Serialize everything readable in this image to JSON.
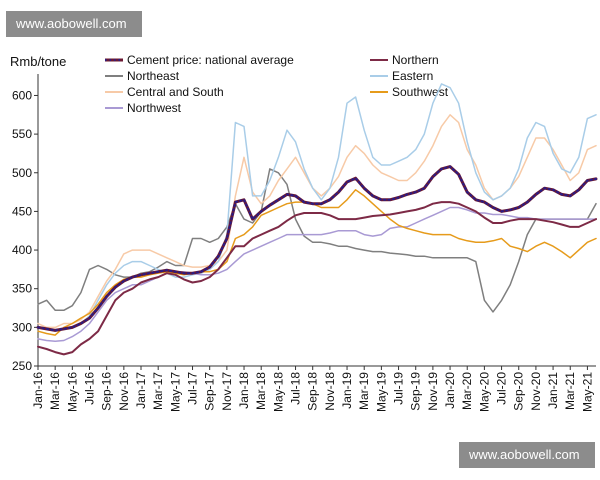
{
  "watermark": {
    "top": "www.aobowell.com",
    "bottom": "www.aobowell.com"
  },
  "chart_data": {
    "type": "line",
    "title": "",
    "xlabel": "",
    "ylabel": "Rmb/tone",
    "ylim": [
      250,
      620
    ],
    "yticks": [
      250,
      300,
      350,
      400,
      450,
      500,
      550,
      600
    ],
    "grid": false,
    "x": [
      "Jan-16",
      "Feb-16",
      "Mar-16",
      "Apr-16",
      "May-16",
      "Jun-16",
      "Jul-16",
      "Aug-16",
      "Sep-16",
      "Oct-16",
      "Nov-16",
      "Dec-16",
      "Jan-17",
      "Feb-17",
      "Mar-17",
      "Apr-17",
      "May-17",
      "Jun-17",
      "Jul-17",
      "Aug-17",
      "Sep-17",
      "Oct-17",
      "Nov-17",
      "Dec-17",
      "Jan-18",
      "Feb-18",
      "Mar-18",
      "Apr-18",
      "May-18",
      "Jun-18",
      "Jul-18",
      "Aug-18",
      "Sep-18",
      "Oct-18",
      "Nov-18",
      "Dec-18",
      "Jan-19",
      "Feb-19",
      "Mar-19",
      "Apr-19",
      "May-19",
      "Jun-19",
      "Jul-19",
      "Aug-19",
      "Sep-19",
      "Oct-19",
      "Nov-19",
      "Dec-19",
      "Jan-20",
      "Feb-20",
      "Mar-20",
      "Apr-20",
      "May-20",
      "Jun-20",
      "Jul-20",
      "Aug-20",
      "Sep-20",
      "Oct-20",
      "Nov-20",
      "Dec-20",
      "Jan-21",
      "Feb-21",
      "Mar-21",
      "Apr-21",
      "May-21",
      "Jun-21"
    ],
    "xtick_labels": [
      "Jan-16",
      "Mar-16",
      "May-16",
      "Jul-16",
      "Sep-16",
      "Nov-16",
      "Jan-17",
      "Mar-17",
      "May-17",
      "Jul-17",
      "Sep-17",
      "Nov-17",
      "Jan-18",
      "Mar-18",
      "May-18",
      "Jul-18",
      "Sep-18",
      "Nov-18",
      "Jan-19",
      "Mar-19",
      "May-19",
      "Jul-19",
      "Sep-19",
      "Nov-19",
      "Jan-20",
      "Mar-20",
      "May-20",
      "Jul-20",
      "Sep-20",
      "Nov-20",
      "Jan-21",
      "Mar-21",
      "May-21"
    ],
    "legend": {
      "left": [
        "Cement price: national average",
        "Northeast",
        "Central and South",
        "Northwest"
      ],
      "right": [
        "Northern",
        "Eastern",
        "Southwest"
      ]
    },
    "series": [
      {
        "name": "Northeast",
        "color": "#7f7f7f",
        "width": 1.5,
        "values": [
          330,
          335,
          322,
          322,
          328,
          345,
          375,
          380,
          375,
          368,
          365,
          365,
          370,
          372,
          378,
          385,
          380,
          380,
          415,
          415,
          410,
          415,
          430,
          460,
          440,
          435,
          450,
          505,
          500,
          485,
          440,
          418,
          410,
          410,
          408,
          405,
          405,
          402,
          400,
          398,
          398,
          396,
          395,
          394,
          392,
          392,
          390,
          390,
          390,
          390,
          390,
          385,
          335,
          320,
          335,
          355,
          385,
          420,
          440,
          440,
          440,
          440,
          440,
          440,
          440,
          460
        ]
      },
      {
        "name": "Central and South",
        "color": "#f7caa7",
        "width": 1.5,
        "values": [
          305,
          300,
          300,
          305,
          305,
          310,
          320,
          340,
          360,
          375,
          395,
          400,
          400,
          400,
          395,
          390,
          385,
          380,
          378,
          378,
          380,
          385,
          400,
          470,
          520,
          475,
          460,
          470,
          490,
          505,
          520,
          500,
          480,
          470,
          480,
          495,
          520,
          535,
          525,
          510,
          500,
          495,
          490,
          490,
          500,
          515,
          535,
          560,
          575,
          565,
          530,
          510,
          480,
          465,
          470,
          480,
          495,
          520,
          545,
          545,
          530,
          510,
          490,
          500,
          530,
          535
        ]
      },
      {
        "name": "Eastern",
        "color": "#a9cde8",
        "width": 1.5,
        "values": [
          300,
          298,
          295,
          298,
          300,
          305,
          315,
          335,
          355,
          370,
          380,
          385,
          385,
          380,
          375,
          370,
          365,
          365,
          368,
          370,
          375,
          385,
          420,
          565,
          560,
          470,
          470,
          490,
          520,
          555,
          540,
          505,
          480,
          465,
          480,
          520,
          590,
          598,
          555,
          520,
          510,
          510,
          515,
          520,
          530,
          550,
          590,
          615,
          610,
          590,
          540,
          500,
          475,
          465,
          470,
          480,
          505,
          545,
          565,
          560,
          525,
          505,
          500,
          520,
          570,
          575
        ]
      },
      {
        "name": "Northwest",
        "color": "#a99ad4",
        "width": 1.5,
        "values": [
          285,
          283,
          282,
          283,
          288,
          295,
          305,
          320,
          335,
          345,
          350,
          355,
          355,
          360,
          365,
          370,
          372,
          372,
          370,
          368,
          368,
          370,
          375,
          385,
          395,
          400,
          405,
          410,
          415,
          420,
          420,
          420,
          420,
          420,
          422,
          425,
          425,
          425,
          420,
          418,
          420,
          428,
          430,
          430,
          435,
          440,
          445,
          450,
          455,
          455,
          452,
          448,
          448,
          446,
          446,
          444,
          442,
          442,
          440,
          440,
          440,
          440,
          440,
          440,
          440,
          440
        ]
      },
      {
        "name": "Southwest",
        "color": "#e69b1b",
        "width": 1.5,
        "values": [
          295,
          292,
          290,
          300,
          305,
          312,
          318,
          330,
          345,
          355,
          362,
          365,
          365,
          368,
          370,
          372,
          370,
          368,
          370,
          372,
          372,
          375,
          385,
          415,
          420,
          430,
          445,
          450,
          455,
          460,
          462,
          462,
          460,
          455,
          455,
          455,
          465,
          478,
          470,
          460,
          450,
          440,
          432,
          428,
          425,
          422,
          420,
          420,
          420,
          415,
          412,
          410,
          410,
          412,
          415,
          405,
          402,
          398,
          405,
          410,
          405,
          398,
          390,
          400,
          410,
          415
        ]
      },
      {
        "name": "Northern",
        "color": "#7d2a46",
        "width": 2,
        "values": [
          275,
          272,
          268,
          265,
          268,
          278,
          285,
          295,
          315,
          335,
          345,
          350,
          358,
          362,
          365,
          370,
          368,
          362,
          358,
          360,
          365,
          375,
          390,
          405,
          405,
          415,
          420,
          425,
          430,
          438,
          445,
          448,
          448,
          448,
          445,
          440,
          440,
          440,
          442,
          444,
          445,
          446,
          448,
          450,
          452,
          455,
          460,
          462,
          462,
          460,
          455,
          450,
          442,
          435,
          435,
          438,
          440,
          440,
          440,
          438,
          436,
          433,
          430,
          430,
          435,
          440
        ]
      },
      {
        "name": "Cement price: national average",
        "color": "#6a1832",
        "width": 3,
        "dotted": true,
        "dot_color": "#2a1c86",
        "values": [
          300,
          298,
          296,
          298,
          300,
          305,
          312,
          325,
          340,
          352,
          360,
          365,
          368,
          370,
          372,
          374,
          372,
          370,
          370,
          372,
          378,
          392,
          415,
          462,
          465,
          440,
          450,
          458,
          465,
          472,
          470,
          462,
          460,
          460,
          465,
          475,
          488,
          493,
          480,
          470,
          465,
          465,
          468,
          472,
          475,
          480,
          495,
          505,
          508,
          498,
          475,
          465,
          462,
          455,
          450,
          452,
          455,
          462,
          472,
          480,
          478,
          472,
          470,
          478,
          490,
          492
        ]
      }
    ]
  }
}
